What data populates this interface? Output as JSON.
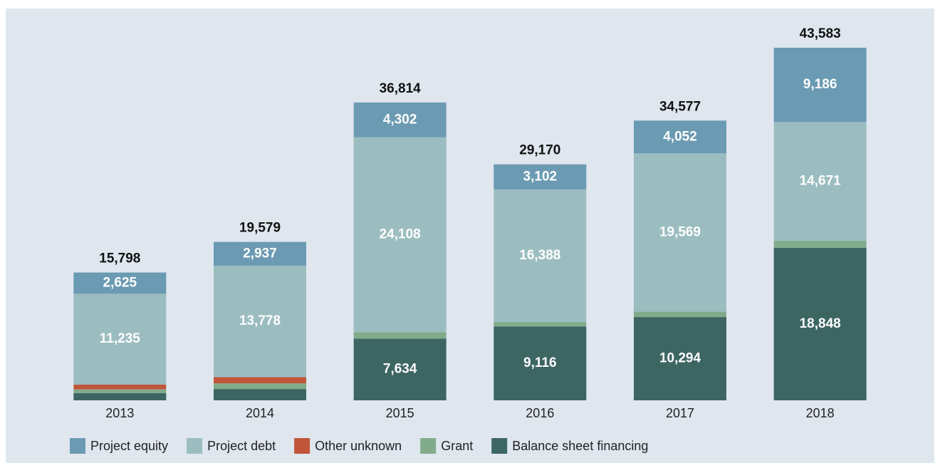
{
  "chart_data": {
    "type": "stacked-bar",
    "categories": [
      "2013",
      "2014",
      "2015",
      "2016",
      "2017",
      "2018"
    ],
    "series": [
      {
        "name": "Balance sheet financing",
        "color": "#3d6663",
        "values": [
          900,
          1400,
          7634,
          9116,
          10294,
          18848
        ],
        "value_labels": [
          null,
          null,
          "7,634",
          "9,116",
          "10,294",
          "18,848"
        ]
      },
      {
        "name": "Grant",
        "color": "#82ab8a",
        "values": [
          450,
          700,
          770,
          564,
          662,
          878
        ],
        "value_labels": [
          null,
          null,
          null,
          null,
          null,
          null
        ]
      },
      {
        "name": "Other unknown",
        "color": "#c0553a",
        "values": [
          588,
          764,
          0,
          0,
          0,
          0
        ],
        "value_labels": [
          null,
          null,
          null,
          null,
          null,
          null
        ]
      },
      {
        "name": "Project debt",
        "color": "#9bbdc0",
        "values": [
          11235,
          13778,
          24108,
          16388,
          19569,
          14671
        ],
        "value_labels": [
          "11,235",
          "13,778",
          "24,108",
          "16,388",
          "19,569",
          "14,671"
        ]
      },
      {
        "name": "Project equity",
        "color": "#6b9ab3",
        "values": [
          2625,
          2937,
          4302,
          3102,
          4052,
          9186
        ],
        "value_labels": [
          "2,625",
          "2,937",
          "4,302",
          "3,102",
          "4,052",
          "9,186"
        ]
      }
    ],
    "totals": {
      "values": [
        15798,
        19579,
        36814,
        29170,
        34577,
        43583
      ],
      "value_labels": [
        "15,798",
        "19,579",
        "36,814",
        "29,170",
        "34,577",
        "43,583"
      ]
    },
    "legend_order": [
      4,
      3,
      2,
      1,
      0
    ]
  }
}
